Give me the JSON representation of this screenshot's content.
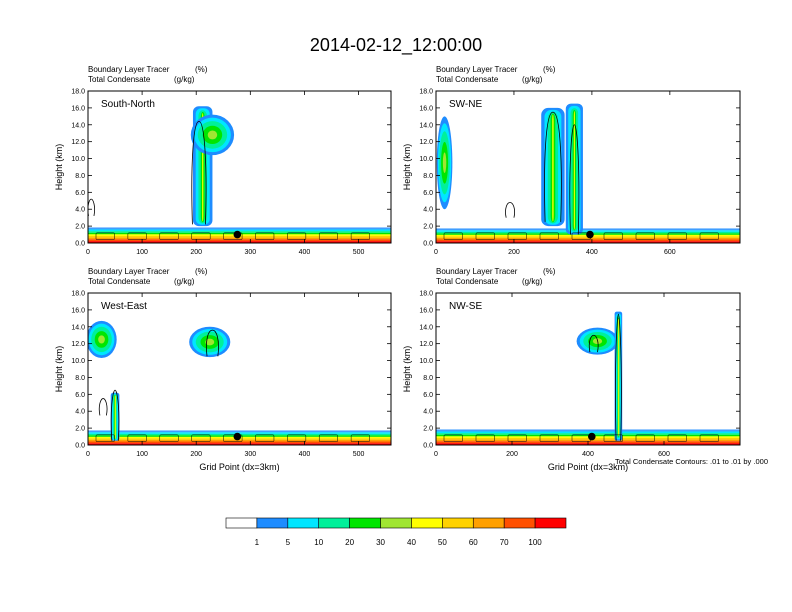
{
  "figure": {
    "title": "2014-02-12_12:00:00",
    "contour_note": "Total Condensate Contours: .01 to .01 by .000"
  },
  "colorbar": {
    "colors": [
      "#ffffff",
      "#1e8cff",
      "#00e6ff",
      "#00f09a",
      "#00e600",
      "#a0e632",
      "#ffff00",
      "#ffd200",
      "#ffa000",
      "#ff5000",
      "#ff0000"
    ],
    "labels": [
      "1",
      "5",
      "10",
      "20",
      "30",
      "40",
      "50",
      "60",
      "70",
      "100"
    ]
  },
  "chart_data": [
    {
      "type": "cross-section",
      "panel_label": "South-North",
      "top_left_label": "Boundary Layer Tracer",
      "top_left_units": "(%)",
      "second_label": "Total Condensate",
      "second_units": "(g/kg)",
      "ylabel": "Height (km)",
      "xlabel": "",
      "xlim": [
        0,
        560
      ],
      "ylim": [
        0,
        18
      ],
      "xticks": [
        0,
        100,
        200,
        300,
        400,
        500
      ],
      "yticks": [
        "0.0",
        "2.0",
        "4.0",
        "6.0",
        "8.0",
        "10.0",
        "12.0",
        "14.0",
        "16.0",
        "18.0"
      ],
      "marker": {
        "x": 276,
        "y": 1.0
      },
      "boundary_layer_top_km": 1.6,
      "features": [
        {
          "kind": "plume",
          "x_center": 212,
          "x_halfwidth": 18,
          "y_bottom": 2.0,
          "y_top": 16.2
        },
        {
          "kind": "anvil",
          "x_center": 230,
          "x_halfwidth": 40,
          "y_center": 12.8,
          "y_halfheight": 2.4
        }
      ],
      "contour_outlines": [
        {
          "x_center": 205,
          "x_halfwidth": 12,
          "y_bottom": 2.2,
          "y_top": 14.4
        },
        {
          "x_center": 6,
          "x_halfwidth": 5,
          "y_bottom": 3.2,
          "y_top": 5.2
        }
      ]
    },
    {
      "type": "cross-section",
      "panel_label": "SW-NE",
      "top_left_label": "Boundary Layer Tracer",
      "top_left_units": "(%)",
      "second_label": "Total Condensate",
      "second_units": "(g/kg)",
      "ylabel": "Height (km)",
      "xlabel": "",
      "xlim": [
        0,
        780
      ],
      "ylim": [
        0,
        18
      ],
      "xticks": [
        0,
        200,
        400,
        600
      ],
      "yticks": [
        "0.0",
        "2.0",
        "4.0",
        "6.0",
        "8.0",
        "10.0",
        "12.0",
        "14.0",
        "16.0",
        "18.0"
      ],
      "marker": {
        "x": 395,
        "y": 1.0
      },
      "boundary_layer_top_km": 1.5,
      "features": [
        {
          "kind": "anvil",
          "x_center": 22,
          "x_halfwidth": 20,
          "y_center": 9.5,
          "y_halfheight": 5.5
        },
        {
          "kind": "plume",
          "x_center": 300,
          "x_halfwidth": 30,
          "y_bottom": 2.0,
          "y_top": 16.0
        },
        {
          "kind": "plume",
          "x_center": 355,
          "x_halfwidth": 22,
          "y_bottom": 1.0,
          "y_top": 16.5
        }
      ],
      "contour_outlines": [
        {
          "x_center": 300,
          "x_halfwidth": 20,
          "y_bottom": 2.5,
          "y_top": 15.5
        },
        {
          "x_center": 355,
          "x_halfwidth": 10,
          "y_bottom": 1.0,
          "y_top": 14.0
        },
        {
          "x_center": 190,
          "x_halfwidth": 10,
          "y_bottom": 3.0,
          "y_top": 4.8
        }
      ]
    },
    {
      "type": "cross-section",
      "panel_label": "West-East",
      "top_left_label": "Boundary Layer Tracer",
      "top_left_units": "(%)",
      "second_label": "Total Condensate",
      "second_units": "(g/kg)",
      "ylabel": "Height (km)",
      "xlabel": "Grid Point (dx=3km)",
      "xlim": [
        0,
        560
      ],
      "ylim": [
        0,
        18
      ],
      "xticks": [
        0,
        100,
        200,
        300,
        400,
        500
      ],
      "yticks": [
        "0.0",
        "2.0",
        "4.0",
        "6.0",
        "8.0",
        "10.0",
        "12.0",
        "14.0",
        "16.0",
        "18.0"
      ],
      "marker": {
        "x": 276,
        "y": 1.0
      },
      "boundary_layer_top_km": 1.5,
      "features": [
        {
          "kind": "anvil",
          "x_center": 25,
          "x_halfwidth": 28,
          "y_center": 12.5,
          "y_halfheight": 2.2
        },
        {
          "kind": "anvil",
          "x_center": 225,
          "x_halfwidth": 38,
          "y_center": 12.2,
          "y_halfheight": 1.8
        },
        {
          "kind": "plume",
          "x_center": 50,
          "x_halfwidth": 8,
          "y_bottom": 0.5,
          "y_top": 6.2
        }
      ],
      "contour_outlines": [
        {
          "x_center": 50,
          "x_halfwidth": 6,
          "y_bottom": 0.5,
          "y_top": 6.5
        },
        {
          "x_center": 230,
          "x_halfwidth": 10,
          "y_bottom": 10.5,
          "y_top": 13.6
        },
        {
          "x_center": 28,
          "x_halfwidth": 6,
          "y_bottom": 3.5,
          "y_top": 5.5
        }
      ]
    },
    {
      "type": "cross-section",
      "panel_label": "NW-SE",
      "top_left_label": "Boundary Layer Tracer",
      "top_left_units": "(%)",
      "second_label": "Total Condensate",
      "second_units": "(g/kg)",
      "ylabel": "Height (km)",
      "xlabel": "Grid Point (dx=3km)",
      "xlim": [
        0,
        800
      ],
      "ylim": [
        0,
        18
      ],
      "xticks": [
        0,
        200,
        400,
        600
      ],
      "yticks": [
        "0.0",
        "2.0",
        "4.0",
        "6.0",
        "8.0",
        "10.0",
        "12.0",
        "14.0",
        "16.0",
        "18.0"
      ],
      "marker": {
        "x": 410,
        "y": 1.0
      },
      "boundary_layer_top_km": 1.6,
      "features": [
        {
          "kind": "anvil",
          "x_center": 425,
          "x_halfwidth": 55,
          "y_center": 12.3,
          "y_halfheight": 1.6
        },
        {
          "kind": "plume",
          "x_center": 480,
          "x_halfwidth": 10,
          "y_bottom": 0.5,
          "y_top": 15.8
        }
      ],
      "contour_outlines": [
        {
          "x_center": 480,
          "x_halfwidth": 6,
          "y_bottom": 0.5,
          "y_top": 15.5
        },
        {
          "x_center": 415,
          "x_halfwidth": 10,
          "y_bottom": 11.0,
          "y_top": 13.0
        }
      ]
    }
  ]
}
